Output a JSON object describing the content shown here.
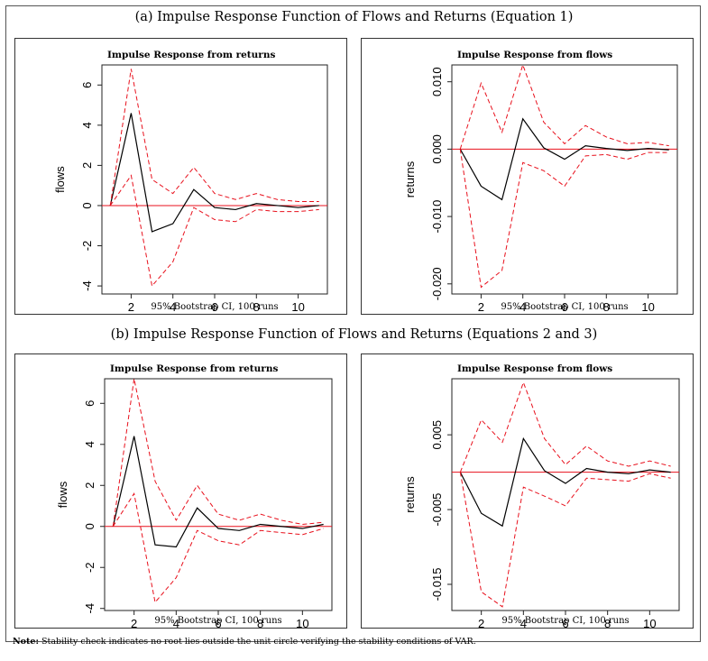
{
  "section_a_title": "(a) Impulse Response Function of Flows and Returns (Equation 1)",
  "section_b_title": "(b) Impulse Response Function of Flows and Returns (Equations 2 and 3)",
  "note_label": "Note:",
  "note_text": "Stability check indicates no root lies outside the unit circle verifying the stability conditions of VAR.",
  "colors": {
    "response": "#000000",
    "ci": "#e8101c",
    "zero_line": "#e8101c"
  },
  "chart_data": [
    {
      "type": "line",
      "title": "Impulse Response from returns",
      "xlabel": "95% Bootstrap CI, 100 runs",
      "ylabel": "flows",
      "xlim": [
        0.6,
        11.4
      ],
      "ylim": [
        -4.4,
        7.0
      ],
      "x_ticks": [
        2,
        4,
        6,
        8,
        10
      ],
      "y_ticks": [
        -4,
        -2,
        0,
        2,
        4,
        6
      ],
      "x": [
        1,
        2,
        3,
        4,
        5,
        6,
        7,
        8,
        9,
        10,
        11
      ],
      "series": [
        {
          "name": "response",
          "values": [
            0,
            4.6,
            -1.3,
            -0.9,
            0.8,
            -0.1,
            -0.2,
            0.1,
            0.0,
            -0.1,
            0.0
          ]
        },
        {
          "name": "upper 95% CI",
          "values": [
            0,
            6.8,
            1.3,
            0.6,
            1.9,
            0.6,
            0.3,
            0.6,
            0.3,
            0.2,
            0.2
          ]
        },
        {
          "name": "lower 95% CI",
          "values": [
            0,
            1.5,
            -4.0,
            -2.8,
            -0.1,
            -0.7,
            -0.8,
            -0.2,
            -0.3,
            -0.3,
            -0.2
          ]
        }
      ]
    },
    {
      "type": "line",
      "title": "Impulse Response from flows",
      "xlabel": "95% Bootstrap CI, 100 runs",
      "ylabel": "returns",
      "xlim": [
        0.6,
        11.4
      ],
      "ylim": [
        -0.0215,
        0.0125
      ],
      "x_ticks": [
        2,
        4,
        6,
        8,
        10
      ],
      "y_ticks": [
        -0.02,
        -0.01,
        0.0,
        0.01
      ],
      "y_tick_labels": [
        "-0.020",
        "-0.010",
        "0.000",
        "0.010"
      ],
      "x": [
        1,
        2,
        3,
        4,
        5,
        6,
        7,
        8,
        9,
        10,
        11
      ],
      "series": [
        {
          "name": "response",
          "values": [
            0,
            -0.0055,
            -0.0075,
            0.0045,
            0.0002,
            -0.0015,
            0.0005,
            0.0001,
            -0.0002,
            0.0001,
            -0.0001
          ]
        },
        {
          "name": "upper 95% CI",
          "values": [
            0,
            0.0098,
            0.0025,
            0.0125,
            0.004,
            0.0008,
            0.0035,
            0.0018,
            0.0008,
            0.001,
            0.0005
          ]
        },
        {
          "name": "lower 95% CI",
          "values": [
            0,
            -0.0205,
            -0.018,
            -0.002,
            -0.0032,
            -0.0055,
            -0.001,
            -0.0008,
            -0.0015,
            -0.0005,
            -0.0005
          ]
        }
      ]
    },
    {
      "type": "line",
      "title": "Impulse Response from returns",
      "xlabel": "95% Bootstrap CI, 100 runs",
      "ylabel": "flows",
      "xlim": [
        0.6,
        11.4
      ],
      "ylim": [
        -4.1,
        7.2
      ],
      "x_ticks": [
        2,
        4,
        6,
        8,
        10
      ],
      "y_ticks": [
        -4,
        -2,
        0,
        2,
        4,
        6
      ],
      "x": [
        1,
        2,
        3,
        4,
        5,
        6,
        7,
        8,
        9,
        10,
        11
      ],
      "series": [
        {
          "name": "response",
          "values": [
            0,
            4.4,
            -0.9,
            -1.0,
            0.9,
            -0.1,
            -0.2,
            0.1,
            0.0,
            -0.1,
            0.1
          ]
        },
        {
          "name": "upper 95% CI",
          "values": [
            0,
            7.2,
            2.2,
            0.3,
            2.0,
            0.6,
            0.3,
            0.6,
            0.3,
            0.1,
            0.2
          ]
        },
        {
          "name": "lower 95% CI",
          "values": [
            0,
            1.6,
            -3.7,
            -2.5,
            -0.2,
            -0.7,
            -0.9,
            -0.2,
            -0.3,
            -0.4,
            -0.1
          ]
        }
      ]
    },
    {
      "type": "line",
      "title": "Impulse Response from flows",
      "xlabel": "95% Bootstrap CI, 100 runs",
      "ylabel": "returns",
      "xlim": [
        0.6,
        11.4
      ],
      "ylim": [
        -0.0185,
        0.0125
      ],
      "x_ticks": [
        2,
        4,
        6,
        8,
        10
      ],
      "y_ticks": [
        -0.015,
        -0.005,
        0.005
      ],
      "y_tick_labels": [
        "-0.015",
        "-0.005",
        "0.005"
      ],
      "x": [
        1,
        2,
        3,
        4,
        5,
        6,
        7,
        8,
        9,
        10,
        11
      ],
      "series": [
        {
          "name": "response",
          "values": [
            0,
            -0.0055,
            -0.0072,
            0.0045,
            0.0002,
            -0.0015,
            0.0005,
            0.0,
            -0.0002,
            0.0003,
            0.0
          ]
        },
        {
          "name": "upper 95% CI",
          "values": [
            0,
            0.007,
            0.004,
            0.012,
            0.0045,
            0.001,
            0.0035,
            0.0015,
            0.0008,
            0.0015,
            0.0008
          ]
        },
        {
          "name": "lower 95% CI",
          "values": [
            0,
            -0.016,
            -0.018,
            -0.002,
            -0.0032,
            -0.0045,
            -0.0008,
            -0.001,
            -0.0012,
            -0.0002,
            -0.0008
          ]
        }
      ]
    }
  ]
}
